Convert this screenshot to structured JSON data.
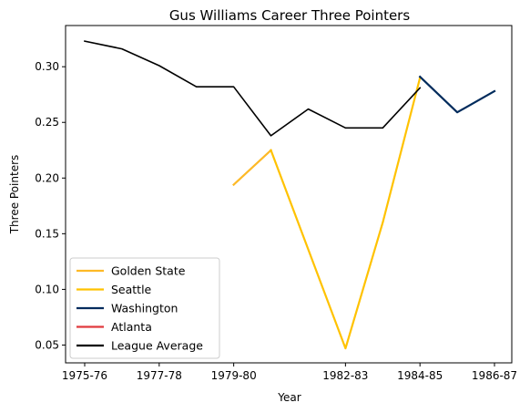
{
  "chart_data": {
    "type": "line",
    "title": "Gus Williams  Career Three Pointers",
    "xlabel": "Year",
    "ylabel": "Three Pointers",
    "x": [
      "1975-76",
      "1976-77",
      "1977-78",
      "1978-79",
      "1979-80",
      "1980-81",
      "1981-82",
      "1982-83",
      "1983-84",
      "1984-85",
      "1985-86",
      "1986-87"
    ],
    "x_tick_labels": [
      "1975-76",
      "1977-78",
      "1979-80",
      "1982-83",
      "1984-85",
      "1986-87"
    ],
    "y_ticks": [
      0.05,
      0.1,
      0.15,
      0.2,
      0.25,
      0.3
    ],
    "y_tick_labels": [
      "0.05",
      "0.10",
      "0.15",
      "0.20",
      "0.25",
      "0.30"
    ],
    "ylim": [
      0.034,
      0.337
    ],
    "grid": false,
    "legend_position": "lower-left",
    "series": [
      {
        "name": "Golden State",
        "color": "#FDB927",
        "points": [
          [
            "1979-80",
            0.194
          ],
          [
            "1980-81",
            0.225
          ]
        ]
      },
      {
        "name": "Seattle",
        "color": "#FFC200",
        "points": [
          [
            "1980-81",
            0.225
          ],
          [
            "1982-83",
            0.047
          ],
          [
            "1983-84",
            0.16
          ],
          [
            "1984-85",
            0.29
          ]
        ]
      },
      {
        "name": "Washington",
        "color": "#002B5C",
        "points": [
          [
            "1984-85",
            0.291
          ],
          [
            "1985-86",
            0.259
          ],
          [
            "1986-87",
            0.278
          ]
        ]
      },
      {
        "name": "Atlanta",
        "color": "#E03A3E",
        "points": []
      },
      {
        "name": "League Average",
        "color": "#000000",
        "points": [
          [
            "1975-76",
            0.323
          ],
          [
            "1976-77",
            0.316
          ],
          [
            "1977-78",
            0.301
          ],
          [
            "1978-79",
            0.282
          ],
          [
            "1979-80",
            0.282
          ],
          [
            "1980-81",
            0.238
          ],
          [
            "1981-82",
            0.262
          ],
          [
            "1982-83",
            0.245
          ],
          [
            "1983-84",
            0.245
          ],
          [
            "1984-85",
            0.281
          ]
        ]
      }
    ]
  }
}
